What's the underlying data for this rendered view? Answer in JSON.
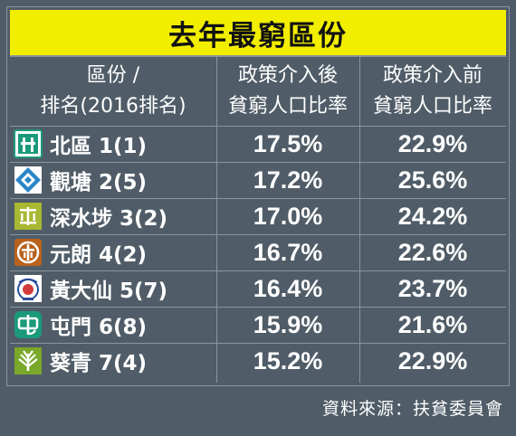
{
  "title": "去年最窮區份",
  "header": {
    "col1_line1": "區份 /",
    "col1_line2": "排名(2016排名)",
    "col2_line1": "政策介入後",
    "col2_line2": "貧窮人口比率",
    "col3_line1": "政策介入前",
    "col3_line2": "貧窮人口比率"
  },
  "rows": [
    {
      "district": "北區 1(1)",
      "after": "17.5%",
      "before": "22.9%",
      "logo_icon": "north-district-logo",
      "logo_color": "#1a9a7a"
    },
    {
      "district": "觀塘 2(5)",
      "after": "17.2%",
      "before": "25.6%",
      "logo_icon": "kwun-tong-logo",
      "logo_color": "#2a86c8"
    },
    {
      "district": "深水埗 3(2)",
      "after": "17.0%",
      "before": "24.2%",
      "logo_icon": "sham-shui-po-logo",
      "logo_color": "#a8b833"
    },
    {
      "district": "元朗 4(2)",
      "after": "16.7%",
      "before": "22.6%",
      "logo_icon": "yuen-long-logo",
      "logo_color": "#b8621d"
    },
    {
      "district": "黃大仙 5(7)",
      "after": "16.4%",
      "before": "23.7%",
      "logo_icon": "wong-tai-sin-logo",
      "logo_color": "#d23b3b"
    },
    {
      "district": "屯門 6(8)",
      "after": "15.9%",
      "before": "21.6%",
      "logo_icon": "tuen-mun-logo",
      "logo_color": "#1a9a7a"
    },
    {
      "district": "葵青 7(4)",
      "after": "15.2%",
      "before": "22.9%",
      "logo_icon": "kwai-tsing-logo",
      "logo_color": "#7aa82a"
    }
  ],
  "source": "資料來源：扶貧委員會"
}
